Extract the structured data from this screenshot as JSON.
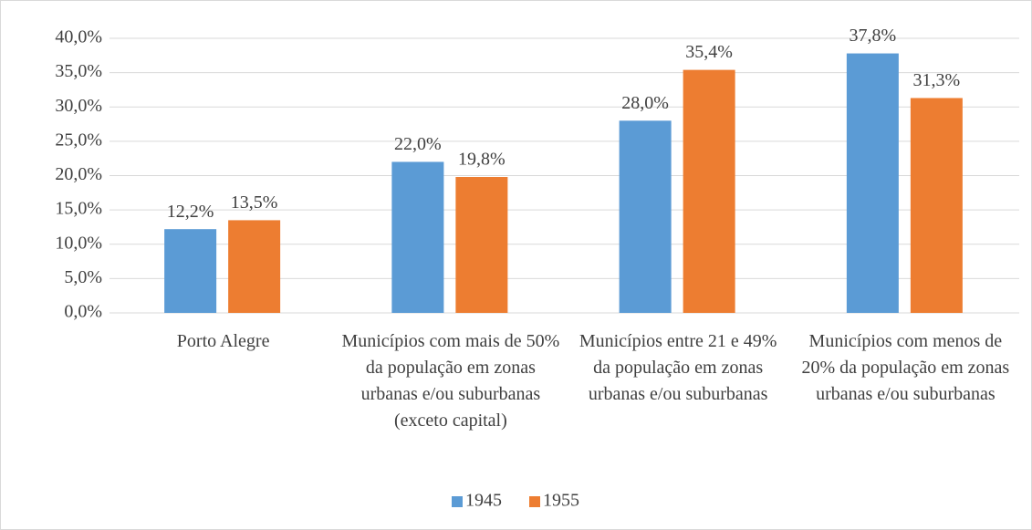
{
  "chart_data": {
    "type": "bar",
    "categories": [
      "Porto Alegre",
      "Municípios com mais de 50% da população em zonas urbanas e/ou suburbanas (exceto capital)",
      "Municípios entre 21 e 49% da população em zonas urbanas e/ou suburbanas",
      "Municípios com menos de 20% da população em zonas urbanas e/ou suburbanas"
    ],
    "series": [
      {
        "name": "1945",
        "color": "#5b9bd5",
        "values": [
          12.2,
          22.0,
          28.0,
          37.8
        ],
        "value_labels": [
          "12,2%",
          "22,0%",
          "28,0%",
          "37,8%"
        ]
      },
      {
        "name": "1955",
        "color": "#ed7d31",
        "values": [
          13.5,
          19.8,
          35.4,
          31.3
        ],
        "value_labels": [
          "13,5%",
          "19,8%",
          "35,4%",
          "31,3%"
        ]
      }
    ],
    "ylim": [
      0,
      40
    ],
    "yticks": [
      {
        "value": 0,
        "label": "0,0%"
      },
      {
        "value": 5,
        "label": "5,0%"
      },
      {
        "value": 10,
        "label": "10,0%"
      },
      {
        "value": 15,
        "label": "15,0%"
      },
      {
        "value": 20,
        "label": "20,0%"
      },
      {
        "value": 25,
        "label": "25,0%"
      },
      {
        "value": 30,
        "label": "30,0%"
      },
      {
        "value": 35,
        "label": "35,0%"
      },
      {
        "value": 40,
        "label": "40,0%"
      }
    ],
    "grid": true,
    "legend": "bottom"
  }
}
